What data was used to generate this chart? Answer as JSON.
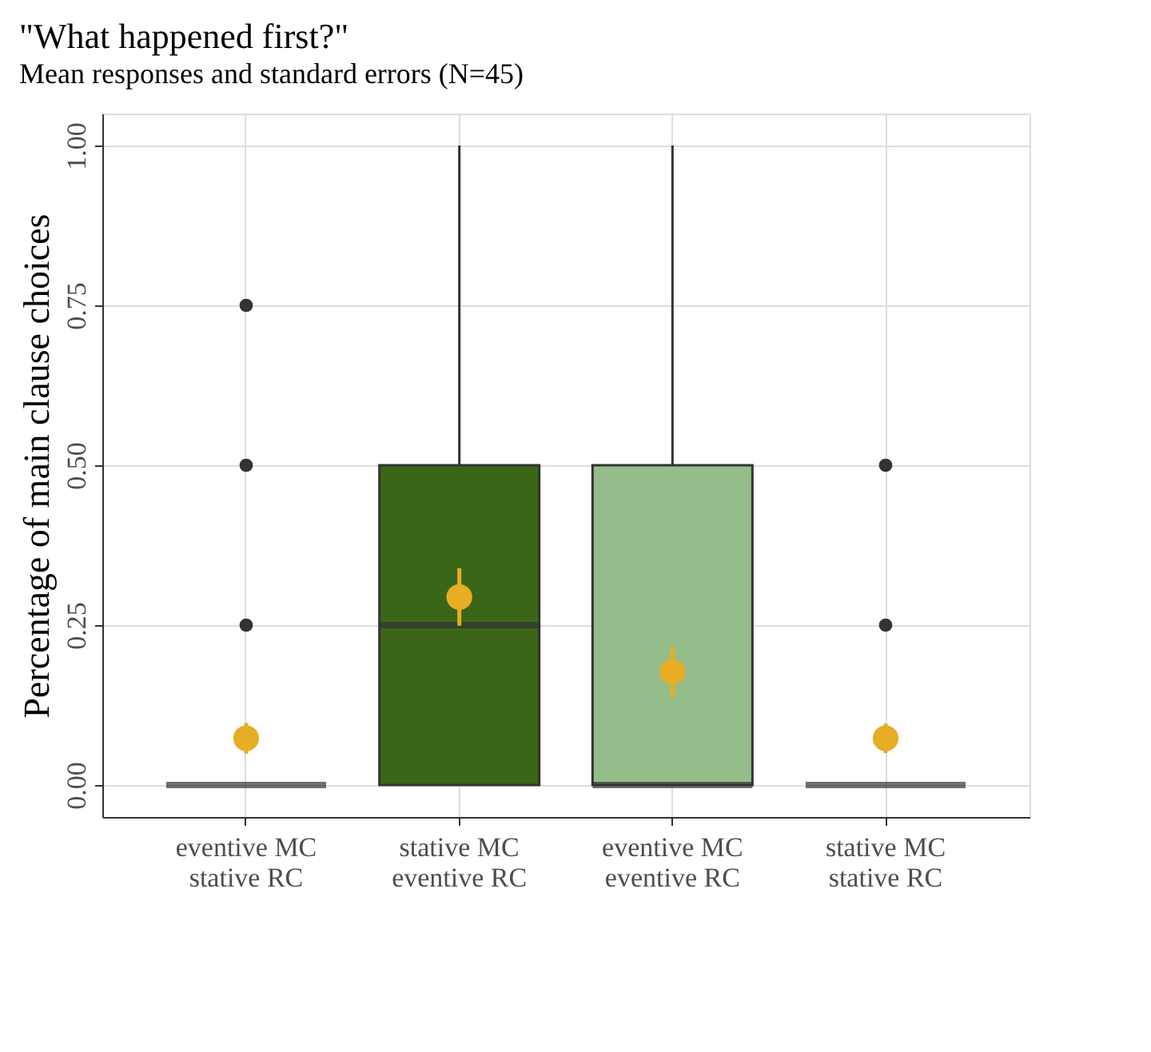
{
  "chart_data": {
    "type": "box",
    "title": "\"What happened first?\"",
    "subtitle": "Mean responses and standard errors (N=45)",
    "ylabel": "Percentage of main clause choices",
    "categories": [
      "eventive MC\nstative RC",
      "stative MC\neventive RC",
      "eventive MC\neventive RC",
      "stative MC\nstative RC"
    ],
    "boxes": [
      {
        "low": 0,
        "q1": 0,
        "median": 0,
        "q3": 0,
        "high": 0,
        "outliers": [
          0.25,
          0.5,
          0.75
        ]
      },
      {
        "low": 0,
        "q1": 0,
        "median": 0.25,
        "q3": 0.5,
        "high": 1
      },
      {
        "low": 0,
        "q1": 0,
        "median": 0,
        "q3": 0.5,
        "high": 1
      },
      {
        "low": 0,
        "q1": 0,
        "median": 0,
        "q3": 0,
        "high": 0,
        "outliers": [
          0.25,
          0.5
        ]
      }
    ],
    "colors": [
      null,
      "#3b6618",
      "#95bd8a",
      null
    ],
    "series": [
      {
        "type": "scatter",
        "color": "#e6ad25",
        "values": [
          0.073,
          0.294,
          0.177,
          0.073
        ],
        "errors": [
          0.024,
          0.045,
          0.041,
          0.023
        ]
      }
    ],
    "ylim": [
      -0.05,
      1.05
    ],
    "yticks": [
      {
        "value": 0,
        "label": "0.00"
      },
      {
        "value": 0.25,
        "label": "0.25"
      },
      {
        "value": 0.5,
        "label": "0.50"
      },
      {
        "value": 0.75,
        "label": "0.75"
      },
      {
        "value": 1,
        "label": "1.00"
      }
    ],
    "grid": true
  }
}
